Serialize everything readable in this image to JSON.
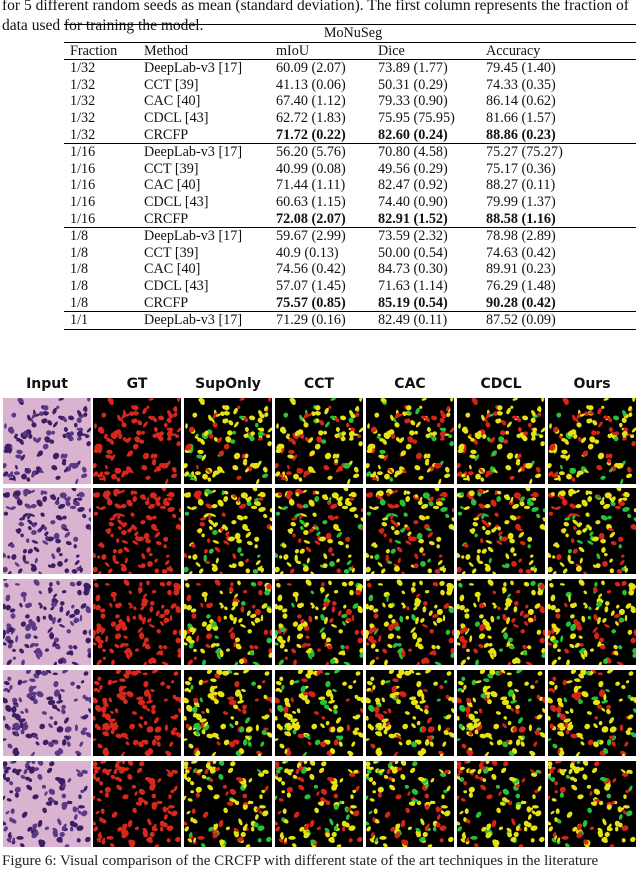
{
  "caption_lines": [
    "for 5 different random seeds as mean (standard deviation). The first column represents the fraction of",
    "data used for training the model."
  ],
  "table": {
    "dataset": "MoNuSeg",
    "headers": [
      "Fraction",
      "Method",
      "mIoU",
      "Dice",
      "Accuracy"
    ],
    "groups": [
      {
        "rows": [
          {
            "fraction": "1/32",
            "method": "DeepLab-v3 [17]",
            "miou": "60.09 (2.07)",
            "dice": "73.89 (1.77)",
            "acc": "79.45 (1.40)",
            "bold": false
          },
          {
            "fraction": "1/32",
            "method": "CCT [39]",
            "miou": "41.13 (0.06)",
            "dice": "50.31 (0.29)",
            "acc": "74.33 (0.35)",
            "bold": false
          },
          {
            "fraction": "1/32",
            "method": "CAC [40]",
            "miou": "67.40 (1.12)",
            "dice": "79.33 (0.90)",
            "acc": "86.14 (0.62)",
            "bold": false
          },
          {
            "fraction": "1/32",
            "method": "CDCL [43]",
            "miou": "62.72 (1.83)",
            "dice": "75.95 (75.95)",
            "acc": "81.66 (1.57)",
            "bold": false
          },
          {
            "fraction": "1/32",
            "method": "CRCFP",
            "miou": "71.72 (0.22)",
            "dice": "82.60 (0.24)",
            "acc": "88.86 (0.23)",
            "bold": true
          }
        ]
      },
      {
        "rows": [
          {
            "fraction": "1/16",
            "method": "DeepLab-v3 [17]",
            "miou": "56.20 (5.76)",
            "dice": "70.80 (4.58)",
            "acc": "75.27 (75.27)",
            "bold": false
          },
          {
            "fraction": "1/16",
            "method": "CCT [39]",
            "miou": "40.99 (0.08)",
            "dice": "49.56 (0.29)",
            "acc": "75.17 (0.36)",
            "bold": false
          },
          {
            "fraction": "1/16",
            "method": "CAC [40]",
            "miou": "71.44 (1.11)",
            "dice": "82.47 (0.92)",
            "acc": "88.27 (0.11)",
            "bold": false
          },
          {
            "fraction": "1/16",
            "method": "CDCL [43]",
            "miou": "60.63 (1.15)",
            "dice": "74.40 (0.90)",
            "acc": "79.99 (1.37)",
            "bold": false
          },
          {
            "fraction": "1/16",
            "method": "CRCFP",
            "miou": "72.08 (2.07)",
            "dice": "82.91 (1.52)",
            "acc": "88.58 (1.16)",
            "bold": true
          }
        ]
      },
      {
        "rows": [
          {
            "fraction": "1/8",
            "method": "DeepLab-v3 [17]",
            "miou": "59.67 (2.99)",
            "dice": "73.59 (2.32)",
            "acc": "78.98 (2.89)",
            "bold": false
          },
          {
            "fraction": "1/8",
            "method": "CCT [39]",
            "miou": "40.9 (0.13)",
            "dice": "50.00 (0.54)",
            "acc": "74.63 (0.42)",
            "bold": false
          },
          {
            "fraction": "1/8",
            "method": "CAC [40]",
            "miou": "74.56 (0.42)",
            "dice": "84.73 (0.30)",
            "acc": "89.91 (0.23)",
            "bold": false
          },
          {
            "fraction": "1/8",
            "method": "CDCL [43]",
            "miou": "57.07 (1.45)",
            "dice": "71.63 (1.14)",
            "acc": "76.29 (1.48)",
            "bold": false
          },
          {
            "fraction": "1/8",
            "method": "CRCFP",
            "miou": "75.57 (0.85)",
            "dice": "85.19 (0.54)",
            "acc": "90.28 (0.42)",
            "bold": true
          }
        ]
      },
      {
        "rows": [
          {
            "fraction": "1/1",
            "method": "DeepLab-v3 [17]",
            "miou": "71.29 (0.16)",
            "dice": "82.49 (0.11)",
            "acc": "87.52 (0.09)",
            "bold": false
          }
        ]
      }
    ]
  },
  "figure": {
    "columns": [
      "Input",
      "GT",
      "SupOnly",
      "CCT",
      "CAC",
      "CDCL",
      "Ours"
    ],
    "column_styles": [
      "he",
      "gt",
      "pred",
      "pred",
      "pred",
      "pred",
      "pred"
    ],
    "row_count": 5,
    "colors": {
      "he_bg": "#d9b3cf",
      "he_nuc": "#3b1f63",
      "gt_nuc": "#d6281c",
      "tp": "#e5e312",
      "fn": "#d62518",
      "fp": "#27c23a",
      "bg": "#000000"
    }
  },
  "footer": "Figure 6: Visual comparison of the CRCFP with different state of the art techniques in the literature"
}
